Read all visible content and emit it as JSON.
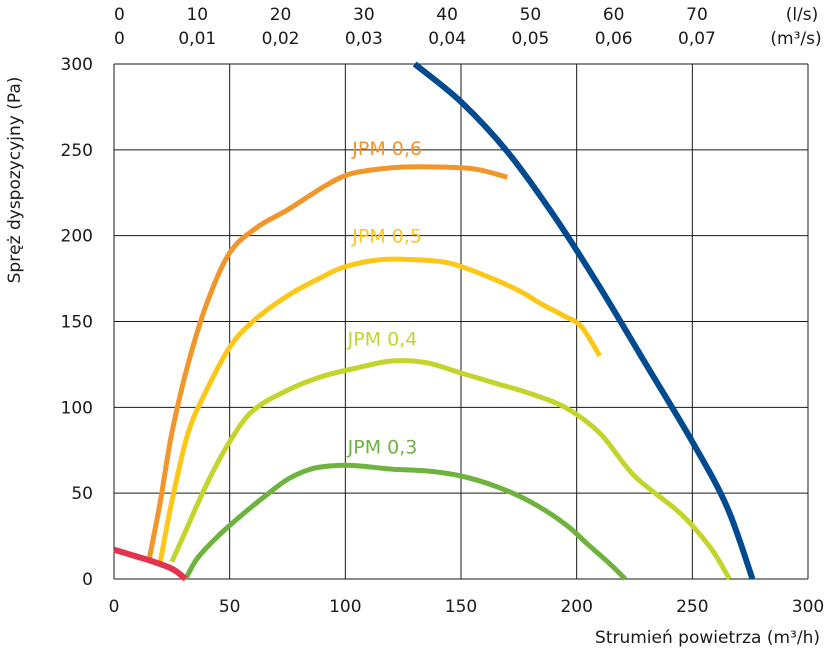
{
  "chart_data": {
    "type": "line",
    "xlabel": "Strumień powietrza (m³/h)",
    "ylabel": "Spręż dyspozycyjny (Pa)",
    "xlim": [
      0,
      300
    ],
    "ylim": [
      0,
      300
    ],
    "grid": true,
    "x_ticks": [
      "0",
      "50",
      "100",
      "150",
      "200",
      "250",
      "300"
    ],
    "y_ticks": [
      "0",
      "50",
      "100",
      "150",
      "200",
      "250",
      "300"
    ],
    "top_axis": {
      "ls_ticks": [
        "0",
        "10",
        "20",
        "30",
        "40",
        "50",
        "60",
        "70"
      ],
      "m3s_ticks": [
        "0",
        "0,01",
        "0,02",
        "0,03",
        "0,04",
        "0,05",
        "0,06",
        "0,07"
      ],
      "ls_unit": "(l/s)",
      "m3s_unit": "(m³/s)"
    },
    "series": [
      {
        "name": "JPM 0,6",
        "color": "#f0962a",
        "points": [
          [
            15,
            10
          ],
          [
            20,
            45
          ],
          [
            25,
            85
          ],
          [
            32,
            125
          ],
          [
            40,
            160
          ],
          [
            50,
            190
          ],
          [
            62,
            205
          ],
          [
            75,
            215
          ],
          [
            90,
            228
          ],
          [
            100,
            235
          ],
          [
            110,
            238
          ],
          [
            125,
            240
          ],
          [
            140,
            240
          ],
          [
            155,
            239
          ],
          [
            165,
            236
          ],
          [
            170,
            234
          ]
        ]
      },
      {
        "name": "JPM 0,5",
        "color": "#fcc716",
        "points": [
          [
            20,
            10
          ],
          [
            25,
            45
          ],
          [
            32,
            85
          ],
          [
            40,
            110
          ],
          [
            50,
            135
          ],
          [
            60,
            150
          ],
          [
            75,
            165
          ],
          [
            90,
            176
          ],
          [
            100,
            182
          ],
          [
            115,
            186
          ],
          [
            130,
            186
          ],
          [
            145,
            184
          ],
          [
            160,
            177
          ],
          [
            175,
            168
          ],
          [
            185,
            160
          ],
          [
            195,
            153
          ],
          [
            202,
            147
          ],
          [
            210,
            130
          ]
        ]
      },
      {
        "name": "JPM 0,4",
        "color": "#c3d52c",
        "points": [
          [
            25,
            10
          ],
          [
            30,
            25
          ],
          [
            40,
            55
          ],
          [
            50,
            80
          ],
          [
            60,
            98
          ],
          [
            75,
            110
          ],
          [
            90,
            118
          ],
          [
            105,
            123
          ],
          [
            120,
            127
          ],
          [
            135,
            126
          ],
          [
            150,
            120
          ],
          [
            165,
            114
          ],
          [
            180,
            108
          ],
          [
            195,
            100
          ],
          [
            210,
            85
          ],
          [
            225,
            60
          ],
          [
            245,
            38
          ],
          [
            258,
            18
          ],
          [
            266,
            0
          ]
        ]
      },
      {
        "name": "JPM 0,3",
        "color": "#6fb33f",
        "points": [
          [
            31,
            0
          ],
          [
            36,
            12
          ],
          [
            45,
            25
          ],
          [
            55,
            37
          ],
          [
            65,
            48
          ],
          [
            75,
            58
          ],
          [
            85,
            64
          ],
          [
            95,
            66
          ],
          [
            105,
            66
          ],
          [
            120,
            64
          ],
          [
            135,
            63
          ],
          [
            150,
            60
          ],
          [
            165,
            54
          ],
          [
            180,
            45
          ],
          [
            195,
            32
          ],
          [
            205,
            20
          ],
          [
            215,
            8
          ],
          [
            221,
            0
          ]
        ]
      },
      {
        "name": "",
        "color": "#004a8f",
        "points": [
          [
            130,
            300
          ],
          [
            150,
            278
          ],
          [
            170,
            249
          ],
          [
            190,
            212
          ],
          [
            210,
            170
          ],
          [
            230,
            125
          ],
          [
            250,
            80
          ],
          [
            265,
            42
          ],
          [
            276,
            0
          ]
        ]
      },
      {
        "name": "",
        "color": "#e2344f",
        "points": [
          [
            0,
            17
          ],
          [
            15,
            11
          ],
          [
            25,
            6
          ],
          [
            31,
            0
          ]
        ]
      }
    ],
    "label_positions_data": [
      {
        "series": 0,
        "x": 103,
        "y": 247
      },
      {
        "series": 1,
        "x": 103,
        "y": 196
      },
      {
        "series": 2,
        "x": 101,
        "y": 136
      },
      {
        "series": 3,
        "x": 101,
        "y": 73
      }
    ]
  }
}
